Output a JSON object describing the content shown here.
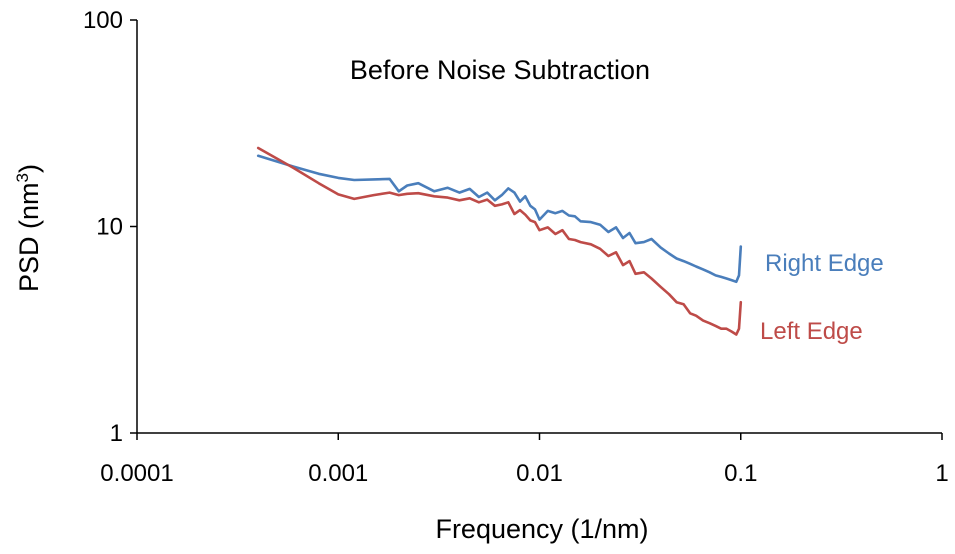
{
  "chart_data": {
    "type": "line",
    "title": "Before Noise Subtraction",
    "xlabel": "Frequency (1/nm)",
    "ylabel": "PSD (nm",
    "ylabel_superscript": "3",
    "ylabel_suffix": ")",
    "x_scale": "log",
    "y_scale": "log",
    "xlim": [
      0.0001,
      1
    ],
    "ylim": [
      1,
      100
    ],
    "x_ticks": [
      "0.0001",
      "0.001",
      "0.01",
      "0.1",
      "1"
    ],
    "x_tick_values": [
      0.0001,
      0.001,
      0.01,
      0.1,
      1
    ],
    "y_ticks": [
      "1",
      "10",
      "100"
    ],
    "y_tick_values": [
      1,
      10,
      100
    ],
    "grid": false,
    "legend": "inline labels at right end of each series",
    "series": [
      {
        "name": "Right Edge",
        "color": "#4a7ebb",
        "x": [
          0.0004,
          0.0006,
          0.0008,
          0.001,
          0.0012,
          0.0015,
          0.0018,
          0.002,
          0.0022,
          0.0025,
          0.003,
          0.0035,
          0.004,
          0.0045,
          0.005,
          0.0055,
          0.006,
          0.0065,
          0.007,
          0.0075,
          0.008,
          0.0085,
          0.009,
          0.0095,
          0.01,
          0.011,
          0.012,
          0.013,
          0.014,
          0.015,
          0.016,
          0.018,
          0.02,
          0.022,
          0.024,
          0.026,
          0.028,
          0.03,
          0.033,
          0.036,
          0.04,
          0.044,
          0.048,
          0.052,
          0.056,
          0.06,
          0.065,
          0.07,
          0.075,
          0.08,
          0.085,
          0.09,
          0.095,
          0.098,
          0.1
        ],
        "y": [
          22,
          19.5,
          18,
          17.2,
          16.8,
          16.9,
          17.0,
          14.8,
          15.8,
          16.2,
          14.8,
          15.4,
          14.6,
          15.2,
          13.9,
          14.6,
          13.4,
          14.2,
          15.3,
          14.6,
          13.2,
          14.0,
          12.6,
          12.1,
          10.8,
          11.9,
          11.6,
          11.9,
          11.3,
          11.2,
          10.6,
          10.5,
          10.2,
          9.4,
          9.9,
          8.8,
          9.3,
          8.3,
          8.4,
          8.7,
          7.9,
          7.4,
          7.0,
          6.8,
          6.6,
          6.4,
          6.2,
          6.0,
          5.8,
          5.7,
          5.6,
          5.5,
          5.4,
          5.8,
          8.0
        ]
      },
      {
        "name": "Left Edge",
        "color": "#be4b48",
        "x": [
          0.0004,
          0.0006,
          0.0008,
          0.001,
          0.0012,
          0.0015,
          0.0018,
          0.002,
          0.0022,
          0.0025,
          0.003,
          0.0035,
          0.004,
          0.0045,
          0.005,
          0.0055,
          0.006,
          0.0065,
          0.007,
          0.0075,
          0.008,
          0.0085,
          0.009,
          0.0095,
          0.01,
          0.011,
          0.012,
          0.013,
          0.014,
          0.015,
          0.016,
          0.018,
          0.02,
          0.022,
          0.024,
          0.026,
          0.028,
          0.03,
          0.033,
          0.036,
          0.04,
          0.044,
          0.048,
          0.052,
          0.056,
          0.06,
          0.065,
          0.07,
          0.075,
          0.08,
          0.085,
          0.09,
          0.095,
          0.098,
          0.1
        ],
        "y": [
          24,
          19.2,
          16.2,
          14.3,
          13.6,
          14.2,
          14.6,
          14.2,
          14.4,
          14.5,
          14.0,
          13.8,
          13.4,
          13.7,
          13.1,
          13.5,
          12.6,
          12.8,
          13.1,
          11.5,
          12.0,
          11.4,
          10.7,
          10.5,
          9.6,
          9.9,
          9.2,
          9.6,
          8.7,
          8.6,
          8.4,
          8.2,
          7.8,
          7.2,
          7.5,
          6.5,
          6.8,
          5.9,
          6.0,
          5.6,
          5.1,
          4.7,
          4.3,
          4.2,
          3.8,
          3.7,
          3.5,
          3.4,
          3.3,
          3.2,
          3.2,
          3.1,
          3.0,
          3.2,
          4.3
        ]
      }
    ]
  }
}
